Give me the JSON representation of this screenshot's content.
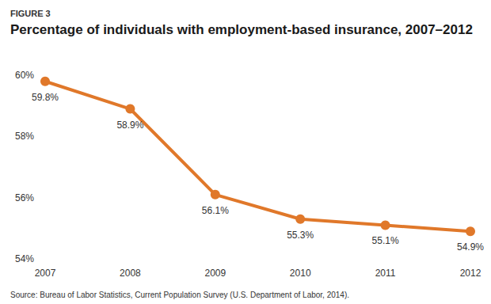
{
  "chart_data": {
    "type": "line",
    "subtitle": "FIGURE 3",
    "title": "Percentage of individuals with employment-based insurance, 2007–2012",
    "caption": "Source: Bureau of Labor Statistics, Current Population Survey (U.S. Department of Labor, 2014).",
    "categories": [
      "2007",
      "2008",
      "2009",
      "2010",
      "2011",
      "2012"
    ],
    "values": [
      59.8,
      58.9,
      56.1,
      55.3,
      55.1,
      54.9
    ],
    "value_labels": [
      "59.8%",
      "58.9%",
      "56.1%",
      "55.3%",
      "55.1%",
      "54.9%"
    ],
    "color": "#e0782a",
    "marker": "circle",
    "ylim": [
      54,
      60
    ],
    "yticks": [
      {
        "value": 54,
        "label": "54%"
      },
      {
        "value": 56,
        "label": "56%"
      },
      {
        "value": 58,
        "label": "58%"
      },
      {
        "value": 60,
        "label": "60%"
      }
    ],
    "grid": false,
    "data_labels": true
  }
}
